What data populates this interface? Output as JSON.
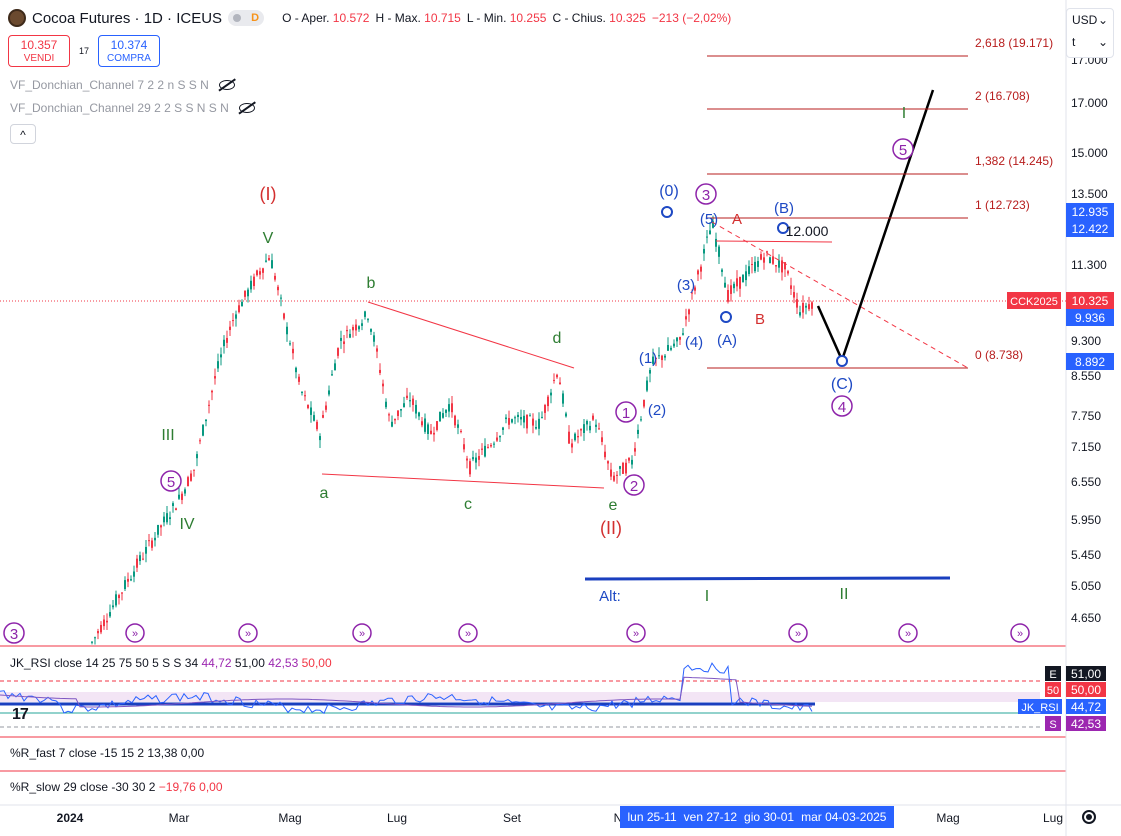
{
  "header": {
    "title": "Cocoa Futures · 1D · ICEUS",
    "pill_d": "D",
    "ohlc": [
      {
        "k": "O - Aper.",
        "v": "10.572"
      },
      {
        "k": "H - Max.",
        "v": "10.715"
      },
      {
        "k": "L - Min.",
        "v": "10.255"
      },
      {
        "k": "C - Chius.",
        "v": "10.325"
      },
      {
        "k": "",
        "v": "−213 (−2,02%)"
      }
    ]
  },
  "trade": {
    "sell_price": "10.357",
    "sell_label": "VENDI",
    "spread": "17",
    "buy_price": "10.374",
    "buy_label": "COMPRA"
  },
  "indicators": {
    "donchian1": "VF_Donchian_Channel 7 2 2 n S S N",
    "donchian2": "VF_Donchian_Channel 29 2 2 S S N S N",
    "collapse_glyph": "^"
  },
  "currency": {
    "label": "USD",
    "sub": "t",
    "chevron": "⌄"
  },
  "panes": {
    "rsi": {
      "name": "JK_RSI close 14 25 75 50 5 S S 34",
      "v1": "44,72",
      "v2": "51,00",
      "v3": "42,53",
      "v4": "50,00"
    },
    "rfast": {
      "name": "%R_fast 7 close -15 15 2",
      "v1": "13,38",
      "v2": "0,00"
    },
    "rslow": {
      "name": "%R_slow 29 close -30 30 2",
      "v1": "−19,76",
      "v2": "0,00"
    }
  },
  "rsi_axis": [
    {
      "text": "E",
      "val": "51,00",
      "box": "#131722",
      "valbox": "#131722",
      "color": "#ffffff"
    },
    {
      "text": "50",
      "val": "50,00",
      "box": "#f23645",
      "valbox": "#f23645",
      "color": "#ffffff"
    },
    {
      "text": "JK_RSI",
      "val": "44,72",
      "box": "#2962ff",
      "valbox": "#2962ff",
      "color": "#ffffff"
    },
    {
      "text": "S",
      "val": "42,53",
      "box": "#9c27b0",
      "valbox": "#9c27b0",
      "color": "#ffffff"
    }
  ],
  "time_axis": [
    "2024",
    "Mar",
    "Mag",
    "Lug",
    "Set",
    "N",
    "Mag",
    "Lug"
  ],
  "date_range": [
    "lun 25-11",
    "ven 27-12",
    "gio 30-01",
    "mar 04-03-2025"
  ],
  "chart_data": {
    "type": "candlestick",
    "symbol": "CCK2025",
    "y_ticks": [
      "17.000",
      "15.000",
      "13.500",
      "11.300",
      "9.300",
      "8.550",
      "7.750",
      "7.150",
      "6.550",
      "5.950",
      "5.450",
      "5.050",
      "4.650"
    ],
    "y_ticks_partial": "17.000",
    "price_labels": [
      {
        "text": "12.935",
        "color": "#2962ff"
      },
      {
        "text": "12.422",
        "color": "#2962ff"
      },
      {
        "text": "CCK2025",
        "color": "#f23645"
      },
      {
        "text": "10.325",
        "color": "#f23645"
      },
      {
        "text": "9.936",
        "color": "#2962ff"
      },
      {
        "text": "8.892",
        "color": "#2962ff"
      }
    ],
    "fib_levels": [
      {
        "ratio": "2,618",
        "price": 19171,
        "label": "2,618 (19.171)"
      },
      {
        "ratio": "2",
        "price": 16708,
        "label": "2 (16.708)"
      },
      {
        "ratio": "1,382",
        "price": 14245,
        "label": "1,382 (14.245)"
      },
      {
        "ratio": "1",
        "price": 12723,
        "label": "1 (12.723)"
      },
      {
        "ratio": "0",
        "price": 8738,
        "label": "0 (8.738)"
      }
    ],
    "level_12000": "12.000",
    "wave_labels": {
      "red": [
        "(I)",
        "(II)",
        "A",
        "B"
      ],
      "green": [
        "V",
        "III",
        "IV",
        "b",
        "d",
        "a",
        "c",
        "e",
        "I",
        "II",
        "I"
      ],
      "blue": [
        "(0)",
        "(5)",
        "(B)",
        "(3)",
        "(A)",
        "(4)",
        "(1)",
        "(2)",
        "(C)",
        "Alt:"
      ],
      "purple_circled": [
        "5",
        "3",
        "1",
        "2",
        "4",
        "5"
      ],
      "bottom_circled": [
        "3"
      ]
    },
    "last_price": 10325,
    "open": 10572,
    "high": 10715,
    "low": 10255,
    "close": 10325
  }
}
